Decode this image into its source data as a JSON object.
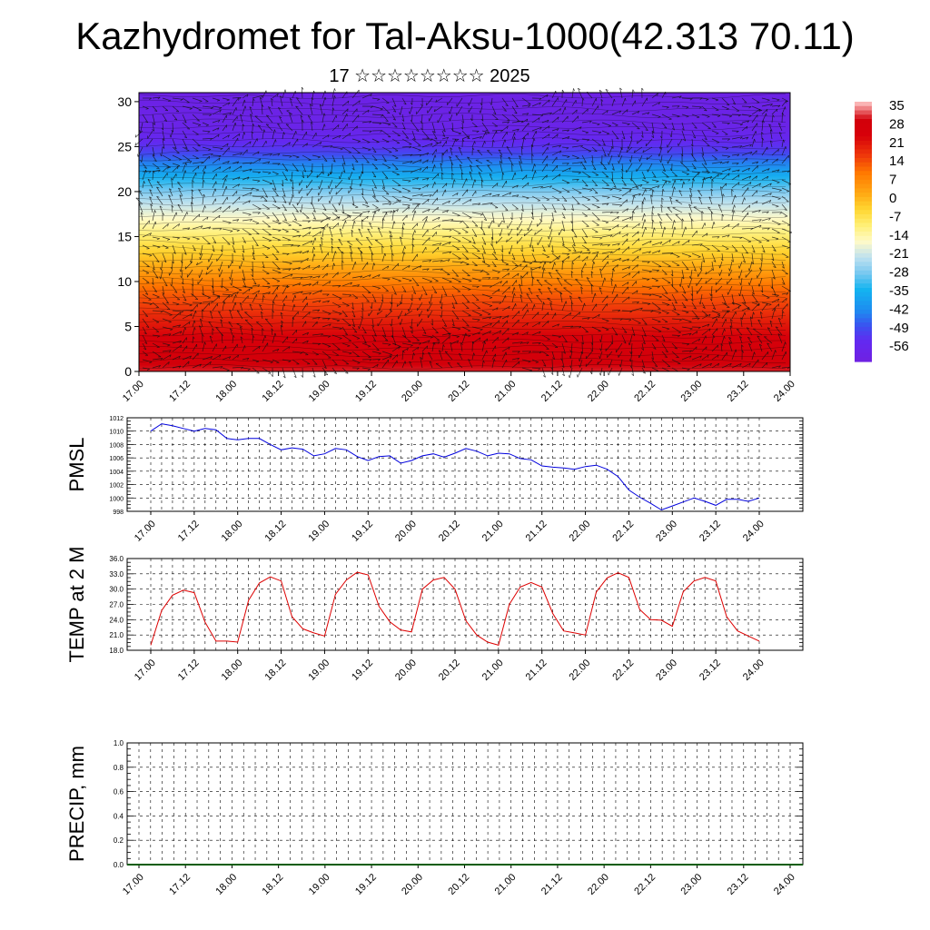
{
  "header": {
    "title": "Kazhydromet for Tal-Aksu-1000(42.313 70.11)",
    "subtitle": "17 ☆☆☆☆☆☆☆☆ 2025"
  },
  "chart_data": [
    {
      "type": "heatmap",
      "title": "",
      "xlabel": "",
      "ylabel": "",
      "x_ticks": [
        "17.00",
        "17.12",
        "18.00",
        "18.12",
        "19.00",
        "19.12",
        "20.00",
        "20.12",
        "21.00",
        "21.12",
        "22.00",
        "22.12",
        "23.00",
        "23.12",
        "24.00"
      ],
      "y_ticks": [
        0,
        5,
        10,
        15,
        20,
        25,
        30
      ],
      "ylim": [
        0,
        31
      ],
      "value_by_level": [
        {
          "level": 0,
          "value": 33
        },
        {
          "level": 3,
          "value": 28
        },
        {
          "level": 6,
          "value": 21
        },
        {
          "level": 9,
          "value": 14
        },
        {
          "level": 12,
          "value": 3
        },
        {
          "level": 15,
          "value": -7
        },
        {
          "level": 17,
          "value": -14
        },
        {
          "level": 19,
          "value": -21
        },
        {
          "level": 21,
          "value": -30
        },
        {
          "level": 23,
          "value": -40
        },
        {
          "level": 24.5,
          "value": -49
        },
        {
          "level": 27,
          "value": -56
        },
        {
          "level": 31,
          "value": -58
        }
      ],
      "overlay": "wind vectors",
      "colorbar": {
        "labels": [
          35,
          28,
          21,
          14,
          7,
          0,
          -7,
          -14,
          -21,
          -28,
          -35,
          -42,
          -49,
          -56
        ],
        "range": [
          -60,
          38
        ]
      }
    },
    {
      "type": "line",
      "ylabel": "PMSL",
      "color": "#0000dd",
      "ylim": [
        998,
        1012
      ],
      "y_ticks": [
        998,
        1000,
        1002,
        1004,
        1006,
        1008,
        1010,
        1012
      ],
      "x_ticks": [
        "17.00",
        "17.12",
        "18.00",
        "18.12",
        "19.00",
        "19.12",
        "20.00",
        "20.12",
        "21.00",
        "21.12",
        "22.00",
        "22.12",
        "23.00",
        "23.12",
        "24.00"
      ],
      "x_hours": [
        0,
        3,
        6,
        9,
        12,
        15,
        18,
        21,
        24,
        27,
        30,
        33,
        36,
        39,
        42,
        45,
        48,
        51,
        54,
        57,
        60,
        63,
        66,
        69,
        72,
        75,
        78,
        81,
        84,
        87,
        90,
        93,
        96,
        99,
        102,
        105,
        108,
        111,
        114,
        117,
        120,
        123,
        126,
        129,
        132,
        135,
        138,
        141,
        144,
        147,
        150,
        153,
        156,
        159,
        162,
        165,
        168
      ],
      "values": [
        1010.0,
        1011.1,
        1010.8,
        1010.4,
        1010.0,
        1010.4,
        1010.2,
        1008.9,
        1008.7,
        1008.9,
        1008.9,
        1008.0,
        1007.2,
        1007.5,
        1007.3,
        1006.3,
        1006.6,
        1007.4,
        1007.2,
        1006.2,
        1005.6,
        1006.2,
        1006.3,
        1005.2,
        1005.6,
        1006.3,
        1006.6,
        1006.1,
        1006.7,
        1007.4,
        1007.0,
        1006.3,
        1006.7,
        1006.6,
        1005.9,
        1005.7,
        1004.8,
        1004.6,
        1004.5,
        1004.3,
        1004.7,
        1004.9,
        1004.3,
        1003.2,
        1001.2,
        1000.1,
        999.2,
        998.2,
        998.8,
        999.4,
        1000.0,
        999.5,
        998.9,
        999.8,
        999.8,
        999.5,
        1000.0
      ]
    },
    {
      "type": "line",
      "ylabel": "TEMP at 2 M",
      "color": "#dd0000",
      "ylim": [
        18.0,
        36.0
      ],
      "y_ticks": [
        "18.0",
        "21.0",
        "24.0",
        "27.0",
        "30.0",
        "33.0",
        "36.0"
      ],
      "x_ticks": [
        "17.00",
        "17.12",
        "18.00",
        "18.12",
        "19.00",
        "19.12",
        "20.00",
        "20.12",
        "21.00",
        "21.12",
        "22.00",
        "22.12",
        "23.00",
        "23.12",
        "24.00"
      ],
      "x_hours": [
        0,
        3,
        6,
        9,
        12,
        15,
        18,
        21,
        24,
        27,
        30,
        33,
        36,
        39,
        42,
        45,
        48,
        51,
        54,
        57,
        60,
        63,
        66,
        69,
        72,
        75,
        78,
        81,
        84,
        87,
        90,
        93,
        96,
        99,
        102,
        105,
        108,
        111,
        114,
        117,
        120,
        123,
        126,
        129,
        132,
        135,
        138,
        141,
        144,
        147,
        150,
        153,
        156,
        159,
        162,
        165,
        168
      ],
      "values": [
        19.0,
        25.8,
        28.8,
        29.8,
        29.3,
        23.5,
        19.8,
        19.8,
        19.6,
        27.8,
        31.2,
        32.4,
        31.6,
        24.6,
        22.2,
        21.4,
        20.8,
        29.0,
        31.8,
        33.3,
        32.8,
        26.6,
        23.6,
        22.0,
        21.6,
        30.0,
        31.8,
        32.3,
        30.0,
        23.8,
        21.0,
        19.6,
        19.0,
        27.0,
        30.4,
        31.3,
        30.4,
        25.2,
        21.8,
        21.4,
        21.0,
        29.4,
        32.2,
        33.2,
        32.3,
        26.0,
        24.0,
        23.9,
        22.7,
        29.5,
        31.6,
        32.3,
        31.6,
        24.6,
        21.8,
        20.8,
        19.8
      ]
    },
    {
      "type": "bar",
      "ylabel": "PRECIP, mm",
      "ylim": [
        0.0,
        1.0
      ],
      "y_ticks": [
        "0.0",
        "0.2",
        "0.4",
        "0.6",
        "0.8",
        "1.0"
      ],
      "x_ticks": [
        "17.00",
        "17.12",
        "18.00",
        "18.12",
        "19.00",
        "19.12",
        "20.00",
        "20.12",
        "21.00",
        "21.12",
        "22.00",
        "22.12",
        "23.00",
        "23.12",
        "24.00"
      ],
      "values": [
        0,
        0,
        0,
        0,
        0,
        0,
        0,
        0,
        0,
        0,
        0,
        0,
        0,
        0,
        0,
        0,
        0,
        0,
        0,
        0,
        0,
        0,
        0,
        0,
        0,
        0,
        0,
        0,
        0,
        0,
        0,
        0,
        0,
        0,
        0,
        0,
        0,
        0,
        0,
        0,
        0,
        0,
        0,
        0,
        0,
        0,
        0,
        0,
        0,
        0,
        0,
        0,
        0,
        0,
        0,
        0
      ]
    }
  ]
}
